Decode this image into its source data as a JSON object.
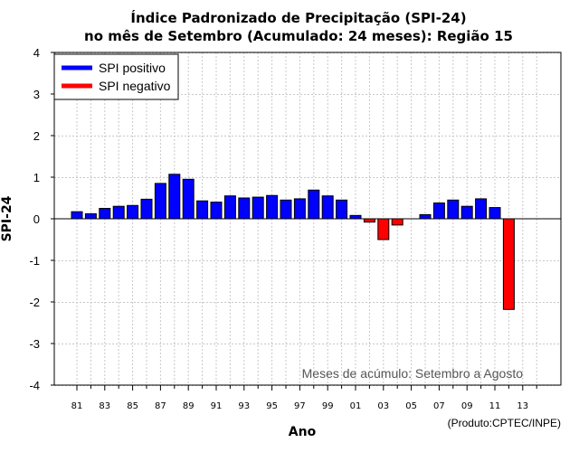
{
  "chart_data": {
    "type": "bar",
    "title_line1": "Índice Padronizado de Precipitação (SPI-24)",
    "title_line2": "no mês de Setembro (Acumulado: 24 meses): Região 15",
    "xlabel": "Ano",
    "ylabel": "SPI-24",
    "ylim": [
      -4,
      4
    ],
    "yticks": [
      "-4",
      "-3",
      "-2",
      "-1",
      "0",
      "1",
      "2",
      "3",
      "4"
    ],
    "xticks": [
      "81",
      "83",
      "85",
      "87",
      "89",
      "91",
      "93",
      "95",
      "97",
      "99",
      "01",
      "03",
      "05",
      "07",
      "09",
      "11",
      "13"
    ],
    "first_year": 1981,
    "last_year": 2014,
    "years": [
      1981,
      1982,
      1983,
      1984,
      1985,
      1986,
      1987,
      1988,
      1989,
      1990,
      1991,
      1992,
      1993,
      1994,
      1995,
      1996,
      1997,
      1998,
      1999,
      2000,
      2001,
      2002,
      2003,
      2004,
      2005,
      2006,
      2007,
      2008,
      2009,
      2010,
      2011,
      2012
    ],
    "values": [
      0.17,
      0.12,
      0.25,
      0.3,
      0.32,
      0.47,
      0.85,
      1.07,
      0.95,
      0.43,
      0.4,
      0.55,
      0.5,
      0.52,
      0.56,
      0.45,
      0.48,
      0.69,
      0.55,
      0.45,
      0.08,
      -0.08,
      -0.5,
      -0.15,
      0.0,
      0.1,
      0.38,
      0.45,
      0.3,
      0.48,
      0.27,
      -2.18
    ],
    "grid": true,
    "legend": [
      {
        "label": "SPI positivo",
        "color": "#0000ff"
      },
      {
        "label": "SPI negativo",
        "color": "#ff0000"
      }
    ],
    "legend_position": "top-left",
    "positive_color": "#0000ff",
    "negative_color": "#ff0000",
    "note": "Meses de acúmulo: Setembro a Agosto",
    "credit": "(Produto:CPTEC/INPE)"
  }
}
